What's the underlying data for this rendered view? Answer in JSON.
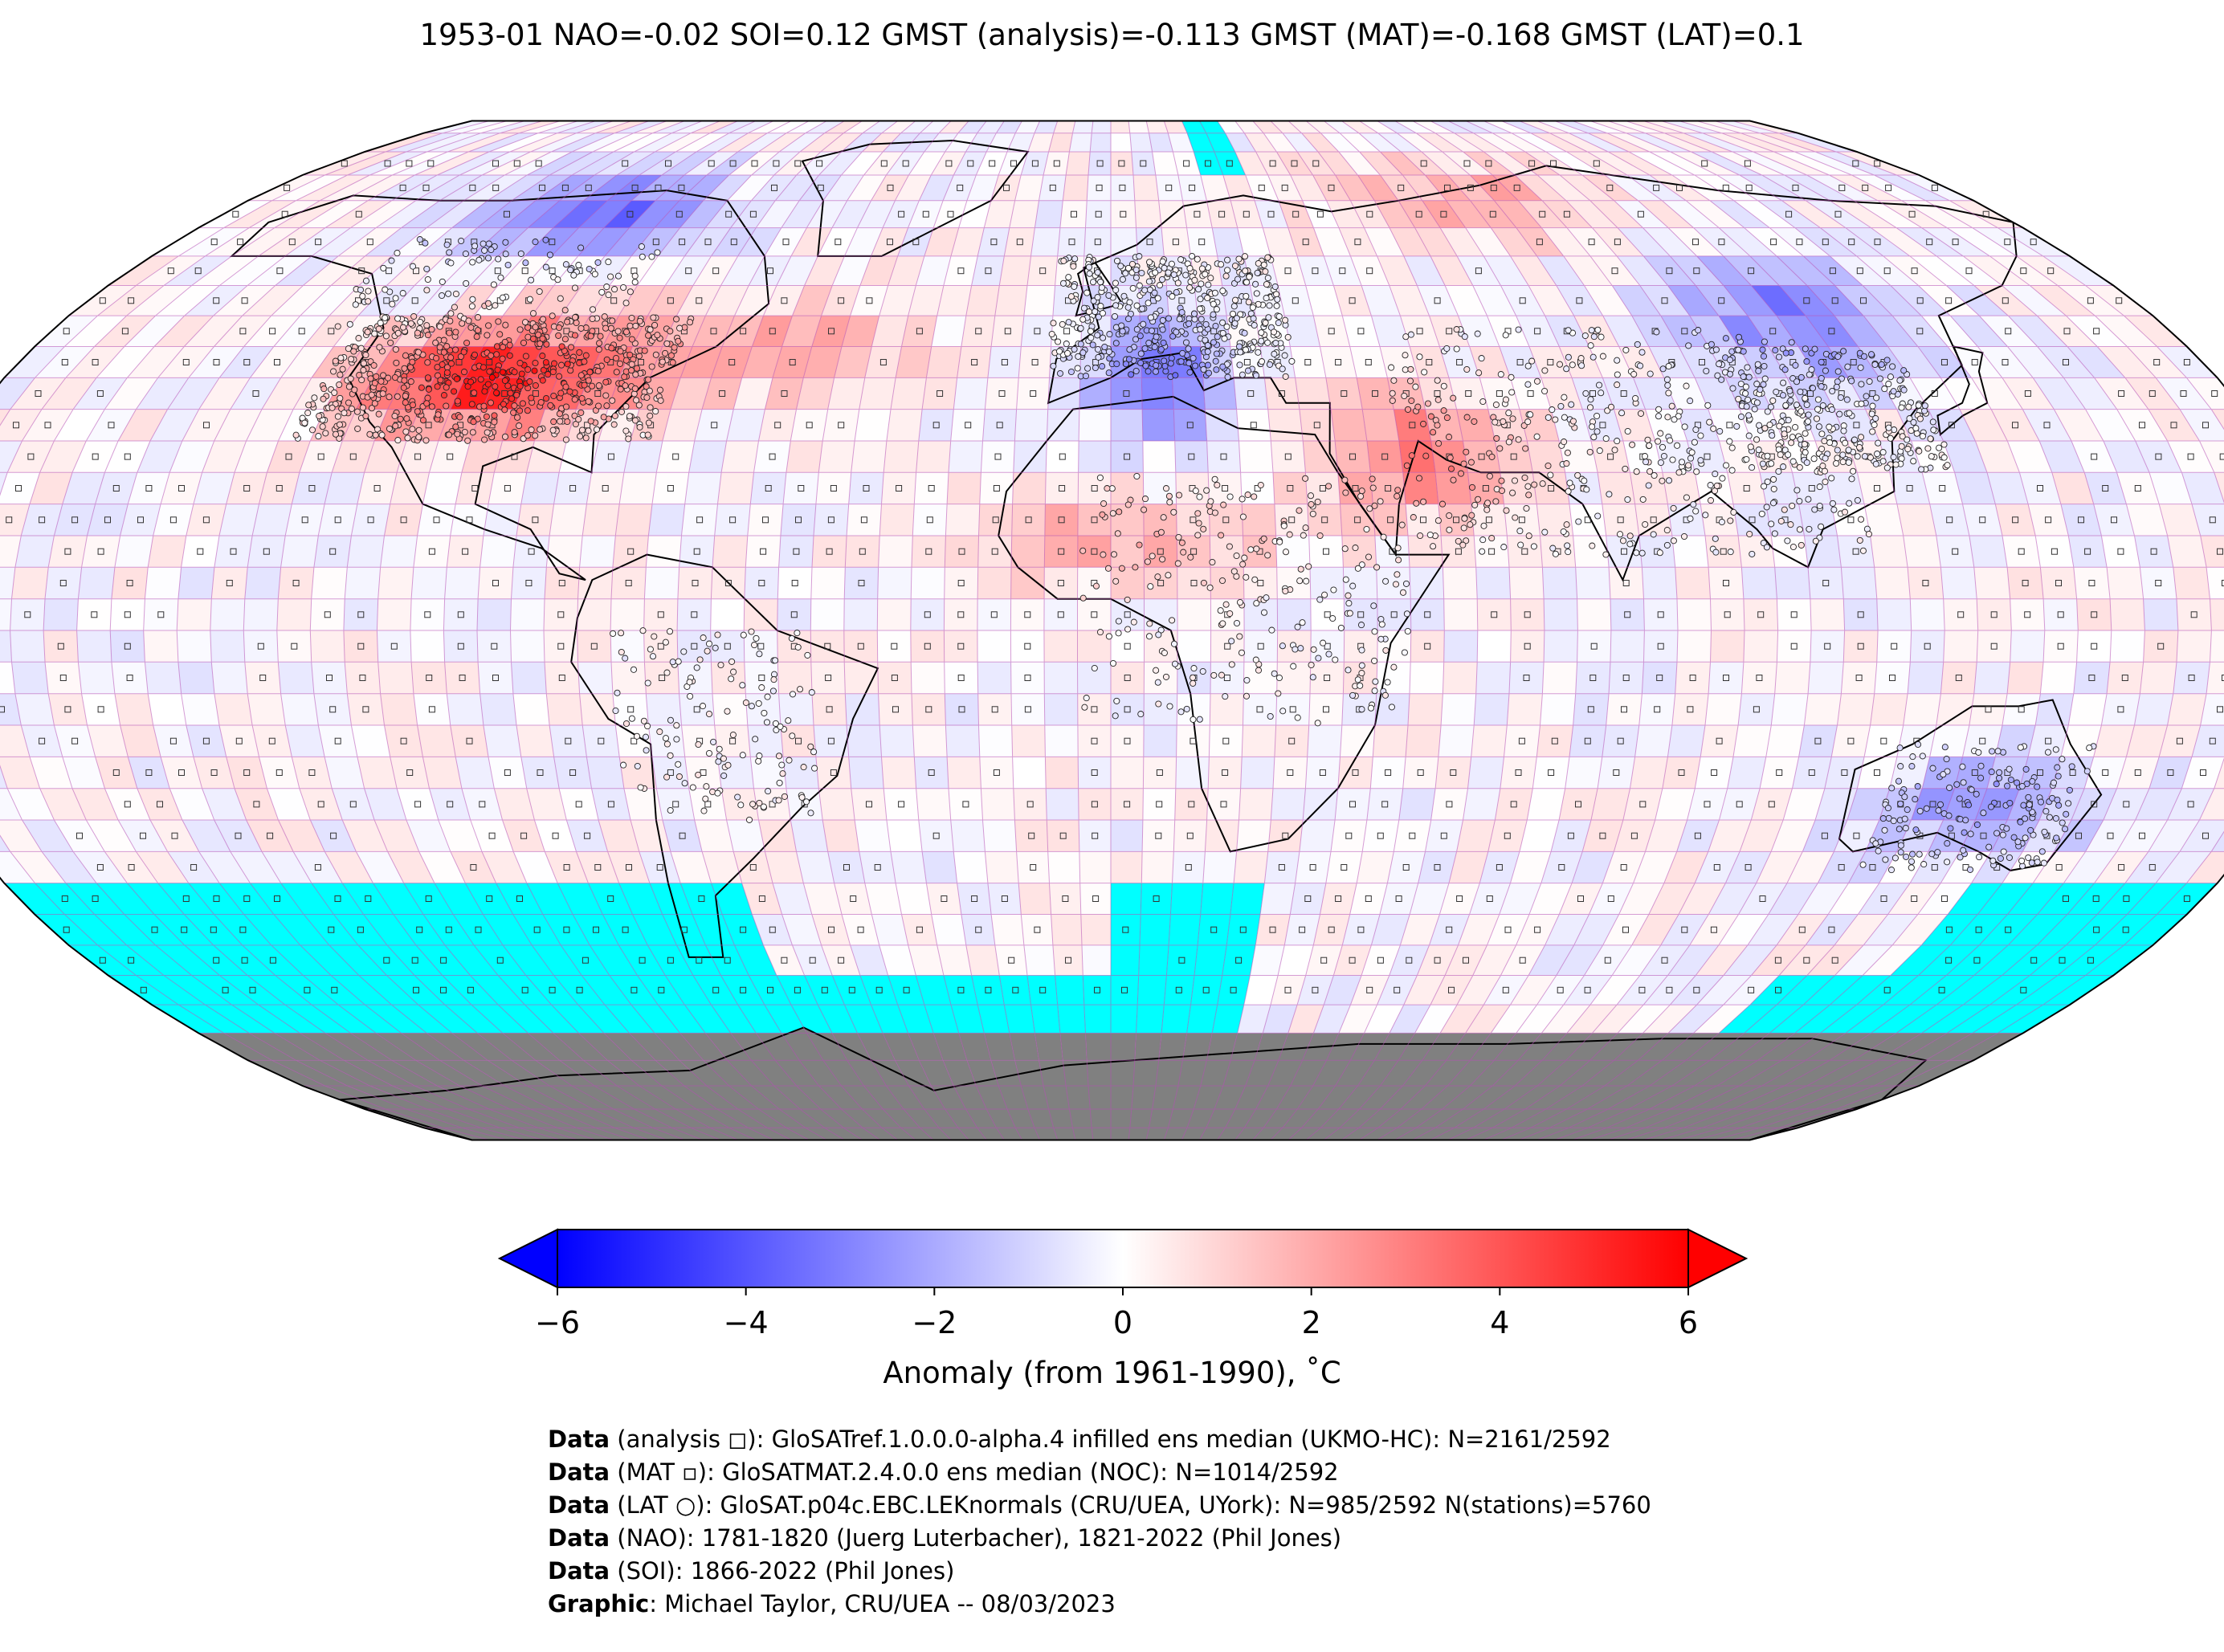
{
  "title": "1953-01 NAO=-0.02 SOI=0.12 GMST (analysis)=-0.113 GMST (MAT)=-0.168 GMST (LAT)=0.1",
  "map": {
    "projection": "Robinson",
    "grid": "5x5 degree",
    "colors": {
      "ocean_no_data": "#00ffff",
      "land_ice": "#808080",
      "grid_lines": "#b44fb4",
      "coastline": "#000000"
    }
  },
  "colorbar": {
    "ticks": [
      "−6",
      "−4",
      "−2",
      "0",
      "2",
      "4",
      "6"
    ],
    "range": [
      -6,
      6
    ],
    "colormap": [
      "#0000ff",
      "#ffffff",
      "#ff0000"
    ],
    "label": "Anomaly (from 1961-1990), ˚C"
  },
  "credits": [
    {
      "lead": "Data",
      "text": " (analysis ◻): GloSATref.1.0.0.0-alpha.4 infilled ens median (UKMO-HC): N=2161/2592"
    },
    {
      "lead": "Data",
      "text": " (MAT ▫): GloSATMAT.2.4.0.0 ens median (NOC): N=1014/2592"
    },
    {
      "lead": "Data",
      "text": " (LAT ○): GloSAT.p04c.EBC.LEKnormals (CRU/UEA, UYork): N=985/2592 N(stations)=5760"
    },
    {
      "lead": "Data",
      "text": " (NAO): 1781-1820 (Juerg Luterbacher), 1821-2022 (Phil Jones)"
    },
    {
      "lead": "Data",
      "text": " (SOI): 1866-2022 (Phil Jones)"
    },
    {
      "lead": "Graphic",
      "text": ": Michael Taylor, CRU/UEA -- 08/03/2023"
    }
  ]
}
